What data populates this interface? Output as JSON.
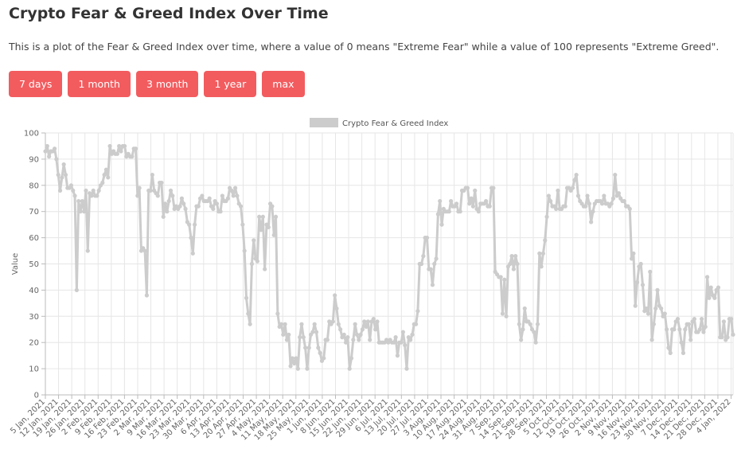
{
  "page": {
    "title": "Crypto Fear & Greed Index Over Time",
    "description": "This is a plot of the Fear & Greed Index over time, where a value of 0 means \"Extreme Fear\" while a value of 100 represents \"Extreme Greed\"."
  },
  "range_buttons": [
    {
      "label": "7 days"
    },
    {
      "label": "1 month"
    },
    {
      "label": "3 month"
    },
    {
      "label": "1 year"
    },
    {
      "label": "max"
    }
  ],
  "colors": {
    "series": "#cccccc",
    "button": "#f25c5f",
    "grid": "#e6e6e6"
  },
  "chart_data": {
    "type": "line",
    "ylabel": "Value",
    "ylim": [
      0,
      100
    ],
    "yticks": [
      0,
      10,
      20,
      30,
      40,
      50,
      60,
      70,
      80,
      90,
      100
    ],
    "grid": true,
    "legend": {
      "label": "Crypto Fear & Greed Index",
      "position": "top"
    },
    "x_start": "5 Jan, 2021",
    "x_end": "5 Jan, 2022",
    "xtick_labels": [
      "5 Jan, 2021",
      "12 Jan, 2021",
      "19 Jan, 2021",
      "26 Jan, 2021",
      "2 Feb, 2021",
      "9 Feb, 2021",
      "16 Feb, 2021",
      "23 Feb, 2021",
      "2 Mar, 2021",
      "9 Mar, 2021",
      "16 Mar, 2021",
      "23 Mar, 2021",
      "30 Mar, 2021",
      "6 Apr, 2021",
      "13 Apr, 2021",
      "20 Apr, 2021",
      "27 Apr, 2021",
      "4 May, 2021",
      "11 May, 2021",
      "18 May, 2021",
      "25 May, 2021",
      "1 Jun, 2021",
      "8 Jun, 2021",
      "15 Jun, 2021",
      "22 Jun, 2021",
      "29 Jun, 2021",
      "6 Jul, 2021",
      "13 Jul, 2021",
      "20 Jul, 2021",
      "27 Jul, 2021",
      "3 Aug, 2021",
      "10 Aug, 2021",
      "17 Aug, 2021",
      "24 Aug, 2021",
      "31 Aug, 2021",
      "7 Sep, 2021",
      "14 Sep, 2021",
      "21 Sep, 2021",
      "28 Sep, 2021",
      "5 Oct, 2021",
      "12 Oct, 2021",
      "19 Oct, 2021",
      "26 Oct, 2021",
      "2 Nov, 2021",
      "9 Nov, 2021",
      "16 Nov, 2021",
      "23 Nov, 2021",
      "30 Nov, 2021",
      "7 Dec, 2021",
      "14 Dec, 2021",
      "21 Dec, 2021",
      "28 Dec, 2021",
      "4 Jan, 2022"
    ],
    "series": [
      {
        "name": "Crypto Fear & Greed Index",
        "values": [
          93,
          95,
          91,
          93,
          93,
          94,
          90,
          84,
          78,
          83,
          88,
          84,
          79,
          79,
          80,
          78,
          76,
          40,
          74,
          70,
          74,
          70,
          78,
          55,
          77,
          76,
          78,
          76,
          76,
          78,
          80,
          81,
          84,
          86,
          83,
          95,
          92,
          93,
          92,
          92,
          95,
          93,
          95,
          95,
          91,
          92,
          91,
          91,
          94,
          94,
          76,
          79,
          55,
          56,
          55,
          38,
          78,
          78,
          84,
          78,
          77,
          76,
          81,
          81,
          68,
          73,
          70,
          74,
          78,
          76,
          71,
          72,
          71,
          72,
          75,
          73,
          71,
          66,
          65,
          60,
          54,
          65,
          72,
          72,
          75,
          76,
          74,
          74,
          74,
          75,
          72,
          71,
          74,
          73,
          70,
          70,
          76,
          74,
          74,
          75,
          79,
          78,
          76,
          79,
          76,
          73,
          72,
          65,
          55,
          37,
          31,
          27,
          50,
          59,
          52,
          51,
          68,
          63,
          68,
          48,
          65,
          64,
          73,
          72,
          61,
          68,
          31,
          26,
          27,
          23,
          27,
          21,
          23,
          11,
          14,
          12,
          14,
          10,
          22,
          27,
          22,
          18,
          10,
          18,
          23,
          24,
          27,
          24,
          18,
          16,
          13,
          14,
          21,
          21,
          28,
          27,
          28,
          38,
          33,
          27,
          25,
          22,
          23,
          20,
          22,
          10,
          14,
          21,
          27,
          23,
          21,
          23,
          25,
          28,
          26,
          28,
          21,
          28,
          29,
          25,
          28,
          20,
          20,
          20,
          20,
          21,
          20,
          21,
          20,
          20,
          22,
          15,
          20,
          20,
          24,
          19,
          10,
          22,
          21,
          23,
          27,
          27,
          32,
          50,
          50,
          53,
          60,
          60,
          48,
          48,
          42,
          50,
          52,
          69,
          74,
          65,
          71,
          70,
          70,
          70,
          74,
          72,
          72,
          73,
          70,
          70,
          78,
          78,
          79,
          79,
          73,
          75,
          72,
          78,
          71,
          70,
          73,
          73,
          73,
          74,
          72,
          72,
          79,
          79,
          47,
          46,
          45,
          45,
          31,
          44,
          30,
          49,
          50,
          53,
          48,
          53,
          50,
          27,
          21,
          25,
          33,
          28,
          28,
          27,
          25,
          24,
          20,
          27,
          54,
          49,
          54,
          59,
          68,
          76,
          74,
          72,
          72,
          71,
          78,
          71,
          71,
          72,
          72,
          79,
          79,
          78,
          79,
          82,
          84,
          76,
          74,
          73,
          72,
          72,
          76,
          73,
          66,
          70,
          73,
          74,
          74,
          74,
          73,
          76,
          73,
          73,
          72,
          73,
          75,
          84,
          76,
          77,
          75,
          74,
          74,
          72,
          72,
          71,
          52,
          54,
          34,
          43,
          49,
          50,
          42,
          32,
          33,
          31,
          47,
          21,
          27,
          33,
          40,
          34,
          33,
          30,
          31,
          25,
          18,
          16,
          25,
          25,
          28,
          29,
          25,
          20,
          16,
          25,
          27,
          27,
          21,
          28,
          29,
          24,
          24,
          25,
          29,
          24,
          26,
          45,
          37,
          41,
          38,
          37,
          40,
          41,
          22,
          22,
          28,
          21,
          22,
          29,
          29,
          23
        ]
      }
    ]
  }
}
